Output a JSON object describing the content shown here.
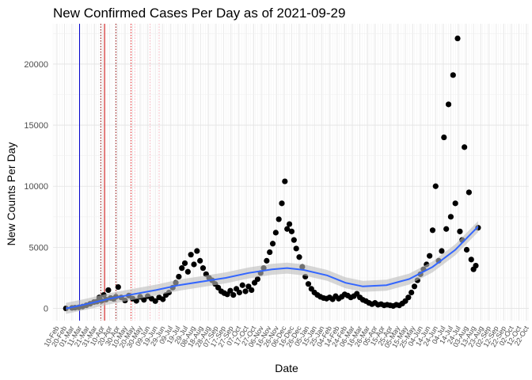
{
  "chart_data": {
    "type": "scatter",
    "title": "New Confirmed Cases Per Day as of 2021-09-29",
    "xlabel": "Date",
    "ylabel": "New Counts Per Day",
    "xlim": [
      "2020-02-05",
      "2021-10-25"
    ],
    "ylim": [
      -1000,
      23300
    ],
    "yticks": [
      0,
      5000,
      10000,
      15000,
      20000
    ],
    "grid": true,
    "legend": "none",
    "colors": {
      "points": "#000000",
      "smooth": "#3366ff",
      "band": "#bdbdbd",
      "vline_blue": "#0000cc",
      "vline_darkred": "#8b0000",
      "vline_red": "#e41a1c",
      "vline_pink": "#ffb6c1"
    },
    "x_ticks": [
      {
        "date": "2020-02-10",
        "label": "10-Feb"
      },
      {
        "date": "2020-02-20",
        "label": "20-Feb"
      },
      {
        "date": "2020-03-01",
        "label": "01-Mar"
      },
      {
        "date": "2020-03-11",
        "label": "11-Mar"
      },
      {
        "date": "2020-03-21",
        "label": "21-Mar"
      },
      {
        "date": "2020-03-31",
        "label": "31-Mar"
      },
      {
        "date": "2020-04-10",
        "label": "10-Apr"
      },
      {
        "date": "2020-04-20",
        "label": "20-Apr"
      },
      {
        "date": "2020-04-30",
        "label": "30-Apr"
      },
      {
        "date": "2020-05-10",
        "label": "10-May"
      },
      {
        "date": "2020-05-20",
        "label": "20-May"
      },
      {
        "date": "2020-05-30",
        "label": "30-May"
      },
      {
        "date": "2020-06-09",
        "label": "09-Jun"
      },
      {
        "date": "2020-06-19",
        "label": "19-Jun"
      },
      {
        "date": "2020-06-29",
        "label": "29-Jun"
      },
      {
        "date": "2020-07-09",
        "label": "09-Jul"
      },
      {
        "date": "2020-07-19",
        "label": "19-Jul"
      },
      {
        "date": "2020-07-29",
        "label": "29-Jul"
      },
      {
        "date": "2020-08-08",
        "label": "08-Aug"
      },
      {
        "date": "2020-08-18",
        "label": "18-Aug"
      },
      {
        "date": "2020-08-28",
        "label": "28-Aug"
      },
      {
        "date": "2020-09-07",
        "label": "07-Sep"
      },
      {
        "date": "2020-09-17",
        "label": "17-Sep"
      },
      {
        "date": "2020-09-27",
        "label": "27-Sep"
      },
      {
        "date": "2020-10-07",
        "label": "07-Oct"
      },
      {
        "date": "2020-10-17",
        "label": "17-Oct"
      },
      {
        "date": "2020-10-27",
        "label": "27-Oct"
      },
      {
        "date": "2020-11-06",
        "label": "06-Nov"
      },
      {
        "date": "2020-11-16",
        "label": "16-Nov"
      },
      {
        "date": "2020-11-26",
        "label": "26-Nov"
      },
      {
        "date": "2020-12-06",
        "label": "06-Dec"
      },
      {
        "date": "2020-12-16",
        "label": "16-Dec"
      },
      {
        "date": "2020-12-26",
        "label": "26-Dec"
      },
      {
        "date": "2021-01-05",
        "label": "05-Jan"
      },
      {
        "date": "2021-01-15",
        "label": "15-Jan"
      },
      {
        "date": "2021-01-25",
        "label": "25-Jan"
      },
      {
        "date": "2021-02-04",
        "label": "04-Feb"
      },
      {
        "date": "2021-02-14",
        "label": "14-Feb"
      },
      {
        "date": "2021-02-24",
        "label": "24-Feb"
      },
      {
        "date": "2021-03-06",
        "label": "06-Mar"
      },
      {
        "date": "2021-03-16",
        "label": "16-Mar"
      },
      {
        "date": "2021-03-26",
        "label": "26-Mar"
      },
      {
        "date": "2021-04-05",
        "label": "05-Apr"
      },
      {
        "date": "2021-04-15",
        "label": "15-Apr"
      },
      {
        "date": "2021-04-25",
        "label": "25-Apr"
      },
      {
        "date": "2021-05-05",
        "label": "05-May"
      },
      {
        "date": "2021-05-15",
        "label": "15-May"
      },
      {
        "date": "2021-05-25",
        "label": "25-May"
      },
      {
        "date": "2021-06-04",
        "label": "04-Jun"
      },
      {
        "date": "2021-06-14",
        "label": "14-Jun"
      },
      {
        "date": "2021-06-24",
        "label": "24-Jun"
      },
      {
        "date": "2021-07-04",
        "label": "04-Jul"
      },
      {
        "date": "2021-07-14",
        "label": "14-Jul"
      },
      {
        "date": "2021-07-24",
        "label": "24-Jul"
      },
      {
        "date": "2021-08-03",
        "label": "03-Aug"
      },
      {
        "date": "2021-08-13",
        "label": "13-Aug"
      },
      {
        "date": "2021-08-23",
        "label": "23-Aug"
      },
      {
        "date": "2021-09-02",
        "label": "02-Sep"
      },
      {
        "date": "2021-09-12",
        "label": "12-Sep"
      },
      {
        "date": "2021-09-22",
        "label": "22-Sep"
      },
      {
        "date": "2021-10-02",
        "label": "02-Oct"
      },
      {
        "date": "2021-10-12",
        "label": "12-Oct"
      },
      {
        "date": "2021-10-22",
        "label": "22-Oct"
      }
    ],
    "vlines": [
      {
        "date": "2020-03-11",
        "color": "#0000cc",
        "style": "solid"
      },
      {
        "date": "2020-04-08",
        "color": "#8b0000",
        "style": "dotted"
      },
      {
        "date": "2020-04-13",
        "color": "#cc0000",
        "style": "solid"
      },
      {
        "date": "2020-04-28",
        "color": "#8b0000",
        "style": "dotted"
      },
      {
        "date": "2020-05-18",
        "color": "#e41a1c",
        "style": "dotted"
      },
      {
        "date": "2020-05-23",
        "color": "#ffb6c1",
        "style": "dotted"
      },
      {
        "date": "2020-06-12",
        "color": "#ffb6c1",
        "style": "dotted"
      },
      {
        "date": "2020-06-24",
        "color": "#ffb6c1",
        "style": "dotted"
      }
    ],
    "points": [
      [
        "2020-02-22",
        0
      ],
      [
        "2020-03-01",
        40
      ],
      [
        "2020-03-05",
        60
      ],
      [
        "2020-03-10",
        90
      ],
      [
        "2020-03-15",
        150
      ],
      [
        "2020-03-20",
        260
      ],
      [
        "2020-03-25",
        380
      ],
      [
        "2020-03-30",
        520
      ],
      [
        "2020-04-03",
        560
      ],
      [
        "2020-04-06",
        900
      ],
      [
        "2020-04-09",
        620
      ],
      [
        "2020-04-12",
        1100
      ],
      [
        "2020-04-15",
        720
      ],
      [
        "2020-04-18",
        1500
      ],
      [
        "2020-04-21",
        850
      ],
      [
        "2020-04-25",
        780
      ],
      [
        "2020-04-28",
        950
      ],
      [
        "2020-05-01",
        1750
      ],
      [
        "2020-05-05",
        900
      ],
      [
        "2020-05-10",
        650
      ],
      [
        "2020-05-15",
        1050
      ],
      [
        "2020-05-20",
        800
      ],
      [
        "2020-05-25",
        620
      ],
      [
        "2020-05-30",
        950
      ],
      [
        "2020-06-04",
        700
      ],
      [
        "2020-06-09",
        1000
      ],
      [
        "2020-06-14",
        800
      ],
      [
        "2020-06-19",
        600
      ],
      [
        "2020-06-24",
        900
      ],
      [
        "2020-06-29",
        750
      ],
      [
        "2020-07-03",
        1100
      ],
      [
        "2020-07-07",
        1300
      ],
      [
        "2020-07-12",
        1700
      ],
      [
        "2020-07-16",
        2100
      ],
      [
        "2020-07-20",
        2600
      ],
      [
        "2020-07-24",
        3300
      ],
      [
        "2020-07-28",
        3700
      ],
      [
        "2020-08-01",
        3000
      ],
      [
        "2020-08-05",
        4400
      ],
      [
        "2020-08-09",
        3600
      ],
      [
        "2020-08-13",
        4700
      ],
      [
        "2020-08-17",
        3900
      ],
      [
        "2020-08-21",
        3300
      ],
      [
        "2020-08-25",
        2800
      ],
      [
        "2020-08-29",
        2500
      ],
      [
        "2020-09-02",
        2300
      ],
      [
        "2020-09-06",
        2000
      ],
      [
        "2020-09-10",
        1700
      ],
      [
        "2020-09-14",
        1400
      ],
      [
        "2020-09-18",
        1250
      ],
      [
        "2020-09-22",
        1150
      ],
      [
        "2020-09-26",
        1450
      ],
      [
        "2020-09-30",
        1100
      ],
      [
        "2020-10-04",
        1600
      ],
      [
        "2020-10-08",
        1300
      ],
      [
        "2020-10-12",
        1900
      ],
      [
        "2020-10-16",
        1400
      ],
      [
        "2020-10-20",
        1800
      ],
      [
        "2020-10-24",
        1500
      ],
      [
        "2020-10-28",
        2100
      ],
      [
        "2020-11-01",
        2400
      ],
      [
        "2020-11-05",
        2900
      ],
      [
        "2020-11-09",
        3300
      ],
      [
        "2020-11-13",
        3900
      ],
      [
        "2020-11-17",
        4600
      ],
      [
        "2020-11-21",
        5300
      ],
      [
        "2020-11-25",
        6200
      ],
      [
        "2020-11-29",
        7300
      ],
      [
        "2020-12-03",
        8600
      ],
      [
        "2020-12-07",
        10400
      ],
      [
        "2020-12-10",
        6500
      ],
      [
        "2020-12-13",
        6900
      ],
      [
        "2020-12-16",
        6300
      ],
      [
        "2020-12-19",
        5600
      ],
      [
        "2020-12-22",
        4900
      ],
      [
        "2020-12-26",
        4200
      ],
      [
        "2020-12-30",
        3400
      ],
      [
        "2021-01-03",
        2600
      ],
      [
        "2021-01-07",
        2000
      ],
      [
        "2021-01-11",
        1600
      ],
      [
        "2021-01-15",
        1300
      ],
      [
        "2021-01-19",
        1100
      ],
      [
        "2021-01-23",
        950
      ],
      [
        "2021-01-27",
        850
      ],
      [
        "2021-01-31",
        800
      ],
      [
        "2021-02-04",
        900
      ],
      [
        "2021-02-08",
        750
      ],
      [
        "2021-02-12",
        1000
      ],
      [
        "2021-02-16",
        800
      ],
      [
        "2021-02-20",
        950
      ],
      [
        "2021-02-24",
        1150
      ],
      [
        "2021-02-28",
        1050
      ],
      [
        "2021-03-04",
        900
      ],
      [
        "2021-03-08",
        1000
      ],
      [
        "2021-03-12",
        1200
      ],
      [
        "2021-03-16",
        900
      ],
      [
        "2021-03-20",
        700
      ],
      [
        "2021-03-24",
        600
      ],
      [
        "2021-03-28",
        450
      ],
      [
        "2021-04-01",
        350
      ],
      [
        "2021-04-05",
        450
      ],
      [
        "2021-04-09",
        300
      ],
      [
        "2021-04-13",
        350
      ],
      [
        "2021-04-17",
        250
      ],
      [
        "2021-04-21",
        300
      ],
      [
        "2021-04-25",
        250
      ],
      [
        "2021-04-29",
        200
      ],
      [
        "2021-05-03",
        300
      ],
      [
        "2021-05-07",
        250
      ],
      [
        "2021-05-11",
        400
      ],
      [
        "2021-05-15",
        600
      ],
      [
        "2021-05-19",
        900
      ],
      [
        "2021-05-23",
        1300
      ],
      [
        "2021-05-27",
        1800
      ],
      [
        "2021-05-31",
        2300
      ],
      [
        "2021-06-04",
        2800
      ],
      [
        "2021-06-08",
        3200
      ],
      [
        "2021-06-12",
        3600
      ],
      [
        "2021-06-16",
        4300
      ],
      [
        "2021-06-20",
        6400
      ],
      [
        "2021-06-24",
        10000
      ],
      [
        "2021-06-28",
        3900
      ],
      [
        "2021-07-02",
        4700
      ],
      [
        "2021-07-05",
        14000
      ],
      [
        "2021-07-08",
        6500
      ],
      [
        "2021-07-11",
        16700
      ],
      [
        "2021-07-14",
        7500
      ],
      [
        "2021-07-17",
        19100
      ],
      [
        "2021-07-20",
        8600
      ],
      [
        "2021-07-23",
        22100
      ],
      [
        "2021-07-26",
        6300
      ],
      [
        "2021-07-29",
        5600
      ],
      [
        "2021-08-01",
        13200
      ],
      [
        "2021-08-04",
        4800
      ],
      [
        "2021-08-07",
        9500
      ],
      [
        "2021-08-10",
        4000
      ],
      [
        "2021-08-13",
        3200
      ],
      [
        "2021-08-16",
        3500
      ],
      [
        "2021-08-19",
        6600
      ]
    ],
    "smooth": [
      [
        "2020-02-22",
        0
      ],
      [
        "2020-03-20",
        350
      ],
      [
        "2020-04-20",
        800
      ],
      [
        "2020-05-20",
        1150
      ],
      [
        "2020-06-20",
        1500
      ],
      [
        "2020-07-20",
        1900
      ],
      [
        "2020-08-20",
        2200
      ],
      [
        "2020-09-20",
        2500
      ],
      [
        "2020-10-20",
        2900
      ],
      [
        "2020-11-20",
        3200
      ],
      [
        "2020-12-10",
        3300
      ],
      [
        "2021-01-01",
        3150
      ],
      [
        "2021-02-01",
        2700
      ],
      [
        "2021-02-25",
        2100
      ],
      [
        "2021-03-20",
        1800
      ],
      [
        "2021-04-20",
        1900
      ],
      [
        "2021-05-20",
        2400
      ],
      [
        "2021-06-20",
        3400
      ],
      [
        "2021-07-20",
        4800
      ],
      [
        "2021-08-19",
        6700
      ]
    ],
    "smooth_band": 450
  }
}
